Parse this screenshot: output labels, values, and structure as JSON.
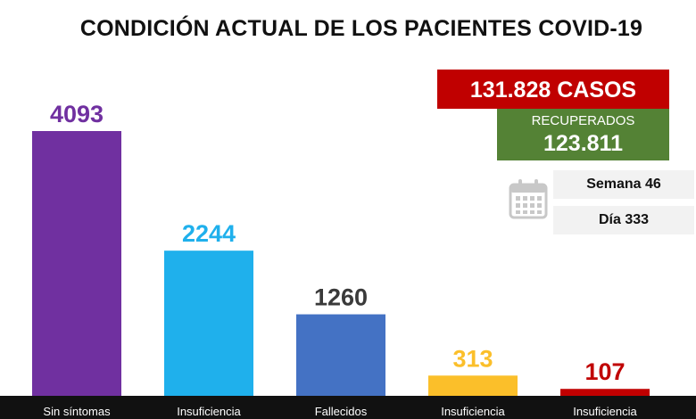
{
  "title": "CONDICIÓN ACTUAL DE LOS PACIENTES COVID-19",
  "summary": {
    "cases": "131.828 CASOS",
    "recovered_label": "RECUPERADOS",
    "recovered_value": "123.811",
    "week": "Semana 46",
    "day": "Día 333",
    "icon": "calendar-icon"
  },
  "colors": {
    "cases": "#c00000",
    "recovered": "#548235",
    "info_bg": "#f2f2f2"
  },
  "chart_data": {
    "type": "bar",
    "title": "CONDICIÓN ACTUAL DE LOS PACIENTES COVID-19",
    "categories": [
      "Sin síntomas",
      "Insuficiencia",
      "Fallecidos",
      "Insuficiencia",
      "Insuficiencia"
    ],
    "values": [
      4093,
      2244,
      1260,
      313,
      107
    ],
    "value_labels": [
      "4093",
      "2244",
      "1260",
      "313",
      "107"
    ],
    "bar_colors": [
      "#7030a0",
      "#1fb0ec",
      "#4472c4",
      "#fbbf2a",
      "#c00000"
    ],
    "label_colors": [
      "#7030a0",
      "#1fb0ec",
      "#3a3a3a",
      "#fbbf2a",
      "#c00000"
    ],
    "xlabel": "",
    "ylabel": "",
    "ylim": [
      0,
      4093
    ],
    "grid": false,
    "legend": "none"
  }
}
